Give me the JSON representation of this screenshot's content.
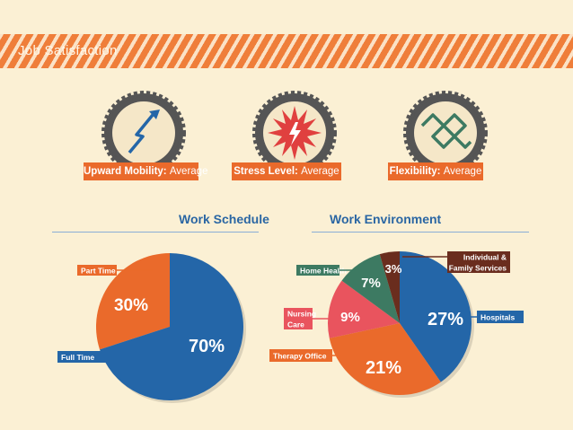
{
  "header": {
    "title": "Job Satisfaction"
  },
  "colors": {
    "blue": "#2466a8",
    "orange": "#ea6a2b",
    "green": "#3d7a62",
    "pink": "#e9545e",
    "brown": "#6a2d1e",
    "cream": "#fbf0d4"
  },
  "badges": [
    {
      "icon": "upward-arrow-icon",
      "label": "Upward Mobility:",
      "value": "Average"
    },
    {
      "icon": "burst-icon",
      "label": "Stress Level:",
      "value": "Average"
    },
    {
      "icon": "zigzag-icon",
      "label": "Flexibility:",
      "value": "Average"
    }
  ],
  "sections": {
    "schedule": "Work Schedule",
    "environment": "Work Environment"
  },
  "chart_data": [
    {
      "type": "pie",
      "title": "Work Schedule",
      "categories": [
        "Full Time",
        "Part Time"
      ],
      "values": [
        70,
        30
      ],
      "value_labels": [
        "70%",
        "30%"
      ],
      "colors": [
        "#2466a8",
        "#ea6a2b"
      ]
    },
    {
      "type": "pie",
      "title": "Work Environment",
      "categories": [
        "Hospitals",
        "Therapy Office",
        "Nursing Care",
        "Home Health",
        "Individual & Family Services"
      ],
      "values": [
        27,
        21,
        9,
        7,
        3
      ],
      "value_labels": [
        "27%",
        "21%",
        "9%",
        "7%",
        "3%"
      ],
      "colors": [
        "#2466a8",
        "#ea6a2b",
        "#e9545e",
        "#3d7a62",
        "#6a2d1e"
      ]
    }
  ]
}
